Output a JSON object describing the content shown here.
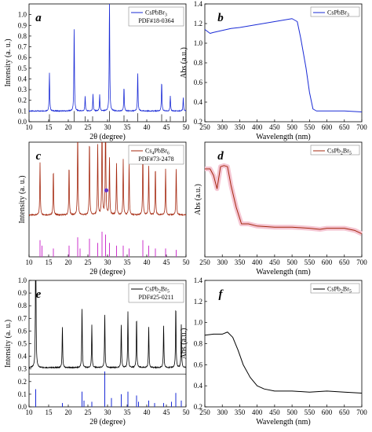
{
  "colors": {
    "blue": "#1a2bd6",
    "brown": "#a5280f",
    "black": "#000000",
    "magenta": "#cc33cc",
    "pinkband": "#f5c6d3"
  },
  "chart_data": [
    {
      "panel": "a",
      "type": "line",
      "legend": "CsPbBr3",
      "legend_label": "CsPbBr",
      "legend_sub": "3",
      "reference": "PDF#18-0364",
      "xlabel": "2θ (degree)",
      "ylabel": "Intensity (a. u.)",
      "xlim": [
        10,
        50
      ],
      "ylim": [
        0,
        1.1
      ],
      "xticks": [
        "10",
        "15",
        "20",
        "25",
        "30",
        "35",
        "40",
        "45",
        "50"
      ],
      "yticks": [
        "0.0",
        "0.1",
        "0.2",
        "0.3",
        "0.4",
        "0.5",
        "0.6",
        "0.7",
        "0.8",
        "0.9",
        "1.0"
      ],
      "baseline": 0.1,
      "peaks": [
        [
          15.2,
          0.36
        ],
        [
          21.5,
          0.79
        ],
        [
          24.3,
          0.14
        ],
        [
          26.3,
          0.16
        ],
        [
          28.0,
          0.15
        ],
        [
          30.5,
          1.05
        ],
        [
          34.2,
          0.23
        ],
        [
          37.7,
          0.36
        ],
        [
          43.8,
          0.28
        ],
        [
          46.0,
          0.14
        ],
        [
          49.3,
          0.13
        ]
      ],
      "ref_sticks": [
        [
          15.2,
          0.07
        ],
        [
          21.5,
          0.1
        ],
        [
          24.3,
          0.05
        ],
        [
          26.2,
          0.05
        ],
        [
          30.5,
          0.1
        ],
        [
          34.2,
          0.06
        ],
        [
          37.7,
          0.08
        ],
        [
          43.8,
          0.07
        ],
        [
          46.0,
          0.05
        ],
        [
          49.3,
          0.05
        ]
      ]
    },
    {
      "panel": "b",
      "type": "line",
      "legend": "CsPbBr3",
      "legend_label": "CsPbBr",
      "legend_sub": "3",
      "xlabel": "Wavelength (nm)",
      "ylabel": "Abs (a.u.)",
      "xlim": [
        250,
        700
      ],
      "ylim": [
        0.2,
        1.4
      ],
      "xticks": [
        "250",
        "300",
        "350",
        "400",
        "450",
        "500",
        "550",
        "600",
        "650",
        "700"
      ],
      "yticks": [
        "0.2",
        "0.4",
        "0.6",
        "0.8",
        "1.0",
        "1.2",
        "1.4"
      ],
      "x": [
        250,
        265,
        275,
        300,
        325,
        350,
        400,
        450,
        500,
        515,
        525,
        540,
        550,
        560,
        570,
        600,
        650,
        700
      ],
      "y": [
        1.14,
        1.1,
        1.11,
        1.13,
        1.15,
        1.16,
        1.19,
        1.22,
        1.25,
        1.22,
        1.05,
        0.75,
        0.5,
        0.33,
        0.31,
        0.31,
        0.31,
        0.3
      ]
    },
    {
      "panel": "c",
      "type": "line",
      "legend": "Cs4PbBr6",
      "legend_label": "Cs",
      "legend_sub1": "4",
      "legend_mid": "PbBr",
      "legend_sub2": "6",
      "reference": "PDF#73-2478",
      "xlabel": "2θ (degree)",
      "ylabel": "Intensity (a. u.)",
      "xlim": [
        10,
        50
      ],
      "xticks": [
        "10",
        "15",
        "20",
        "25",
        "30",
        "35",
        "40",
        "45",
        "50"
      ],
      "baseline": 0.3,
      "peaks": [
        [
          12.8,
          0.38
        ],
        [
          16.2,
          0.33
        ],
        [
          20.2,
          0.36
        ],
        [
          22.4,
          0.62
        ],
        [
          25.4,
          0.55
        ],
        [
          27.5,
          0.52
        ],
        [
          28.6,
          0.7
        ],
        [
          29.5,
          0.78
        ],
        [
          30.5,
          0.42
        ],
        [
          32.3,
          0.38
        ],
        [
          34.0,
          0.4
        ],
        [
          35.5,
          0.37
        ],
        [
          39.0,
          0.46
        ],
        [
          40.5,
          0.36
        ],
        [
          42.2,
          0.35
        ],
        [
          44.8,
          0.33
        ],
        [
          47.5,
          0.34
        ]
      ],
      "ref_sticks": [
        [
          12.8,
          0.12
        ],
        [
          13.3,
          0.08
        ],
        [
          16.2,
          0.06
        ],
        [
          20.2,
          0.08
        ],
        [
          22.4,
          0.14
        ],
        [
          23.0,
          0.06
        ],
        [
          25.4,
          0.13
        ],
        [
          27.5,
          0.1
        ],
        [
          28.6,
          0.18
        ],
        [
          29.5,
          0.16
        ],
        [
          30.5,
          0.1
        ],
        [
          32.3,
          0.08
        ],
        [
          34.0,
          0.08
        ],
        [
          35.5,
          0.06
        ],
        [
          39.0,
          0.12
        ],
        [
          40.5,
          0.08
        ],
        [
          42.2,
          0.06
        ],
        [
          44.8,
          0.06
        ],
        [
          47.5,
          0.05
        ]
      ],
      "marker_x": 29.7
    },
    {
      "panel": "d",
      "type": "line",
      "legend": "CsPb2Br5",
      "legend_label": "CsPb",
      "legend_sub1": "2",
      "legend_mid": "Br",
      "legend_sub2": "5",
      "xlabel": "Wavelength (nm)",
      "ylabel": "Abs (a.u.)",
      "xlim": [
        250,
        700
      ],
      "xticks": [
        "250",
        "300",
        "350",
        "400",
        "450",
        "500",
        "550",
        "600",
        "650",
        "700"
      ],
      "x": [
        250,
        265,
        275,
        285,
        295,
        305,
        315,
        325,
        340,
        355,
        375,
        400,
        450,
        500,
        550,
        580,
        600,
        650,
        680,
        700
      ],
      "y": [
        0.8,
        0.8,
        0.74,
        0.62,
        0.82,
        0.83,
        0.82,
        0.65,
        0.45,
        0.3,
        0.3,
        0.28,
        0.27,
        0.27,
        0.26,
        0.25,
        0.26,
        0.26,
        0.24,
        0.21
      ]
    },
    {
      "panel": "e",
      "type": "line",
      "legend": "CsPb2Br5",
      "legend_label": "CsPb",
      "legend_sub1": "2",
      "legend_mid": "Br",
      "legend_sub2": "5",
      "reference": "PDF#25-0211",
      "xlabel": "2θ (degree)",
      "ylabel": "Intensity (a. u.)",
      "xlim": [
        10,
        50
      ],
      "ylim": [
        0,
        1.0
      ],
      "xticks": [
        "10",
        "15",
        "20",
        "25",
        "30",
        "35",
        "40",
        "45",
        "50"
      ],
      "yticks": [
        "0.0",
        "0.1",
        "0.2",
        "0.3",
        "0.4",
        "0.5",
        "0.6",
        "0.7",
        "0.8",
        "0.9",
        "1.0"
      ],
      "baseline": 0.31,
      "peaks": [
        [
          11.7,
          1.2
        ],
        [
          18.5,
          0.33
        ],
        [
          23.5,
          0.48
        ],
        [
          26.0,
          0.34
        ],
        [
          29.3,
          0.43
        ],
        [
          33.5,
          0.35
        ],
        [
          35.2,
          0.44
        ],
        [
          37.4,
          0.41
        ],
        [
          40.5,
          0.33
        ],
        [
          44.3,
          0.34
        ],
        [
          47.4,
          0.5
        ],
        [
          48.8,
          0.34
        ]
      ],
      "ref_sticks": [
        [
          11.7,
          0.14
        ],
        [
          18.5,
          0.03
        ],
        [
          23.5,
          0.12
        ],
        [
          24.0,
          0.05
        ],
        [
          26.0,
          0.04
        ],
        [
          29.3,
          0.28
        ],
        [
          31.0,
          0.07
        ],
        [
          33.5,
          0.1
        ],
        [
          35.2,
          0.12
        ],
        [
          37.4,
          0.09
        ],
        [
          37.9,
          0.04
        ],
        [
          40.5,
          0.05
        ],
        [
          42.0,
          0.03
        ],
        [
          44.3,
          0.03
        ],
        [
          46.3,
          0.04
        ],
        [
          47.4,
          0.11
        ],
        [
          48.8,
          0.05
        ]
      ]
    },
    {
      "panel": "f",
      "type": "line",
      "legend": "CsPb2Br5",
      "legend_label": "CsPb",
      "legend_sub1": "2",
      "legend_mid": "Br",
      "legend_sub2": "5",
      "xlabel": "Wavelength (nm)",
      "ylabel": "Abs (a.u.)",
      "xlim": [
        250,
        700
      ],
      "ylim": [
        0.2,
        1.4
      ],
      "xticks": [
        "250",
        "300",
        "350",
        "400",
        "450",
        "500",
        "550",
        "600",
        "650",
        "700"
      ],
      "yticks": [
        "0.2",
        "0.4",
        "0.6",
        "0.8",
        "1.0",
        "1.2",
        "1.4"
      ],
      "x": [
        250,
        275,
        300,
        315,
        330,
        345,
        360,
        380,
        400,
        420,
        450,
        500,
        550,
        600,
        650,
        700
      ],
      "y": [
        0.88,
        0.89,
        0.89,
        0.91,
        0.86,
        0.74,
        0.6,
        0.48,
        0.4,
        0.37,
        0.35,
        0.35,
        0.34,
        0.35,
        0.34,
        0.33
      ]
    }
  ]
}
